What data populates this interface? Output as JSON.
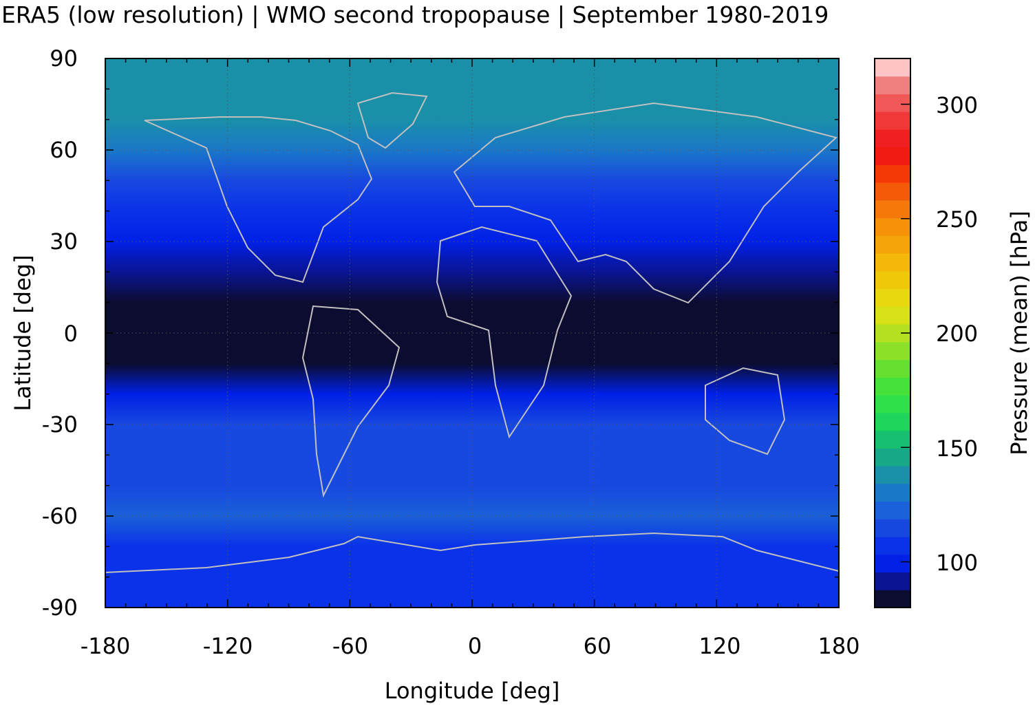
{
  "title": "ERA5 (low resolution) | WMO second tropopause | September 1980-2019",
  "chart_data": {
    "type": "heatmap",
    "title": "ERA5 (low resolution) | WMO second tropopause | September 1980-2019",
    "xlabel": "Longitude [deg]",
    "ylabel": "Latitude [deg]",
    "xlim": [
      -180,
      180
    ],
    "ylim": [
      -90,
      90
    ],
    "x_ticks": [
      "-180",
      "-120",
      "-60",
      "0",
      "60",
      "120",
      "180"
    ],
    "y_ticks": [
      "-90",
      "-60",
      "-30",
      "0",
      "30",
      "60",
      "90"
    ],
    "grid": "dotted",
    "colorbar": {
      "label": "Pressure (mean) [hPa]",
      "range": [
        80,
        320
      ],
      "ticks": [
        "100",
        "150",
        "200",
        "250",
        "300"
      ],
      "colors": [
        "#0c0c30",
        "#0a1493",
        "#0020e6",
        "#0a32e8",
        "#1748e0",
        "#1a60d8",
        "#1a78c8",
        "#1a8fa8",
        "#17a888",
        "#17c070",
        "#1ed45a",
        "#2ee04a",
        "#46e03a",
        "#66e030",
        "#8ce028",
        "#b4e020",
        "#d8e018",
        "#e8d810",
        "#f0c80a",
        "#f5b808",
        "#f5a508",
        "#f59208",
        "#f57808",
        "#f55a08",
        "#f53a08",
        "#f01a10",
        "#f02020",
        "#f03838",
        "#f05858",
        "#f08080",
        "#ffc4c4"
      ]
    },
    "zonal_mean_pressure_hPa": [
      {
        "lat": -90,
        "value": 105
      },
      {
        "lat": -80,
        "value": 108
      },
      {
        "lat": -70,
        "value": 110
      },
      {
        "lat": -60,
        "value": 125
      },
      {
        "lat": -50,
        "value": 115
      },
      {
        "lat": -40,
        "value": 118
      },
      {
        "lat": -30,
        "value": 112
      },
      {
        "lat": -20,
        "value": 98
      },
      {
        "lat": -10,
        "value": 85
      },
      {
        "lat": 0,
        "value": 82
      },
      {
        "lat": 10,
        "value": 84
      },
      {
        "lat": 20,
        "value": 90
      },
      {
        "lat": 30,
        "value": 100
      },
      {
        "lat": 40,
        "value": 110
      },
      {
        "lat": 50,
        "value": 118
      },
      {
        "lat": 60,
        "value": 128
      },
      {
        "lat": 70,
        "value": 135
      },
      {
        "lat": 80,
        "value": 140
      },
      {
        "lat": 90,
        "value": 138
      }
    ],
    "features": [
      "coastlines"
    ]
  }
}
